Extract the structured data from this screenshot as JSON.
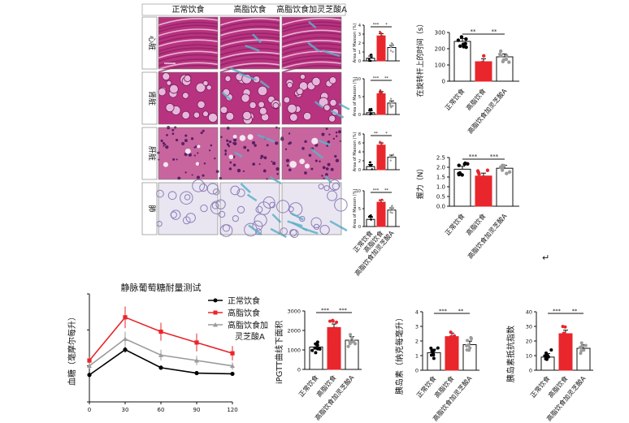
{
  "histology": {
    "columns": [
      "正常饮食",
      "高脂饮食",
      "高脂饮食加灵芝酸A"
    ],
    "rows": [
      "心脏",
      "肾脏",
      "肝脏",
      "肺"
    ],
    "ylabel": "Area of Masson (%)",
    "group_labels": [
      "正常饮食",
      "高脂饮食",
      "高脂饮食加灵芝酸A"
    ]
  },
  "colors": {
    "control": "#000000",
    "hfd": "#e8262b",
    "treated": "#9b9b9b",
    "tissue_pink": "#c53f93",
    "collagen_blue": "#5fb0c8"
  },
  "return_symbol": "↵",
  "chart_data": [
    {
      "type": "bar",
      "id": "masson-heart",
      "categories": [
        "正常饮食",
        "高脂饮食",
        "高脂饮食加灵芝酸A"
      ],
      "values": [
        0.3,
        2.8,
        1.5
      ],
      "ylim": [
        0,
        4
      ],
      "yticks": [
        "0",
        "1",
        "2",
        "3",
        "4"
      ],
      "ylabel": "Area of Masson (%)",
      "sig": [
        "***",
        "*"
      ]
    },
    {
      "type": "bar",
      "id": "masson-kidney",
      "categories": [
        "正常饮食",
        "高脂饮食",
        "高脂饮食加灵芝酸A"
      ],
      "values": [
        0.5,
        5.8,
        3.2
      ],
      "ylim": [
        0,
        10
      ],
      "yticks": [
        "0",
        "5",
        "10"
      ],
      "ylabel": "Area of Masson (%)",
      "sig": [
        "***",
        "**"
      ]
    },
    {
      "type": "bar",
      "id": "masson-liver",
      "categories": [
        "正常饮食",
        "高脂饮食",
        "高脂饮食加灵芝酸A"
      ],
      "values": [
        0.7,
        5.5,
        2.8
      ],
      "ylim": [
        0,
        8
      ],
      "yticks": [
        "0",
        "2",
        "4",
        "6",
        "8"
      ],
      "ylabel": "Area of Masson (%)",
      "sig": [
        "**",
        "*"
      ]
    },
    {
      "type": "bar",
      "id": "masson-lung",
      "categories": [
        "正常饮食",
        "高脂饮食",
        "高脂饮食加灵芝酸A"
      ],
      "values": [
        2.0,
        6.8,
        4.6
      ],
      "ylim": [
        0,
        10
      ],
      "yticks": [
        "0",
        "5",
        "10"
      ],
      "ylabel": "Area of Masson (%)",
      "sig": [
        "***",
        "**"
      ]
    },
    {
      "type": "bar",
      "id": "rotarod",
      "categories": [
        "正常饮食",
        "高脂饮食",
        "高脂饮食加灵芝酸A"
      ],
      "values": [
        245,
        120,
        150
      ],
      "ylim": [
        0,
        300
      ],
      "yticks": [
        "0",
        "100",
        "200",
        "300"
      ],
      "ylabel": "在旋转杆上的时间（s）",
      "sig": [
        "**",
        "**"
      ]
    },
    {
      "type": "bar",
      "id": "grip",
      "categories": [
        "正常饮食",
        "高脂饮食",
        "高脂饮食加灵芝酸A"
      ],
      "values": [
        1.9,
        1.55,
        1.95
      ],
      "ylim": [
        0,
        2.5
      ],
      "yticks": [
        "0.0",
        "0.5",
        "1.0",
        "1.5",
        "2.0",
        "2.5"
      ],
      "ylabel": "握力（N）",
      "sig": [
        "***",
        "***"
      ]
    },
    {
      "type": "line",
      "id": "ipgtt",
      "title": "静脉葡萄糖耐量测试",
      "x": [
        0,
        30,
        60,
        90,
        120
      ],
      "xticks": [
        "0",
        "30",
        "60",
        "90",
        "120"
      ],
      "ylabel": "血糖（毫摩尔每升）",
      "series": [
        {
          "name": "正常饮食",
          "values": [
            7.5,
            14.5,
            9.5,
            8.0,
            7.8
          ],
          "err": [
            0.4,
            0.8,
            0.6,
            0.4,
            0.4
          ]
        },
        {
          "name": "高脂饮食",
          "values": [
            11.5,
            23.5,
            19.5,
            16.5,
            13.5
          ],
          "err": [
            0.8,
            3.0,
            2.5,
            2.5,
            2.0
          ]
        },
        {
          "name": "高脂饮食加灵芝酸A",
          "values": [
            10.0,
            17.5,
            13.0,
            11.5,
            10.0
          ],
          "err": [
            0.7,
            2.0,
            1.5,
            1.3,
            1.0
          ]
        }
      ]
    },
    {
      "type": "bar",
      "id": "ipgtt-auc",
      "categories": [
        "正常饮食",
        "高脂饮食",
        "高脂饮食加灵芝酸A"
      ],
      "values": [
        1150,
        2150,
        1500
      ],
      "ylim": [
        0,
        3000
      ],
      "yticks": [
        "0",
        "1000",
        "2000",
        "3000"
      ],
      "ylabel": "iPGTT曲线下面积",
      "sig": [
        "***",
        "***"
      ]
    },
    {
      "type": "bar",
      "id": "insulin",
      "categories": [
        "正常饮食",
        "高脂饮食",
        "高脂饮食加灵芝酸A"
      ],
      "values": [
        1.2,
        2.3,
        1.75
      ],
      "ylim": [
        0,
        4
      ],
      "yticks": [
        "0",
        "1",
        "2",
        "3",
        "4"
      ],
      "ylabel": "胰岛素（纳克每毫升）",
      "sig": [
        "***",
        "**"
      ]
    },
    {
      "type": "bar",
      "id": "homa-ir",
      "categories": [
        "正常饮食",
        "高脂饮食",
        "高脂饮食加灵芝酸A"
      ],
      "values": [
        9,
        25,
        15
      ],
      "ylim": [
        0,
        40
      ],
      "yticks": [
        "0",
        "10",
        "20",
        "30",
        "40"
      ],
      "ylabel": "胰岛素抵抗指数",
      "sig": [
        "***",
        "**"
      ]
    }
  ]
}
